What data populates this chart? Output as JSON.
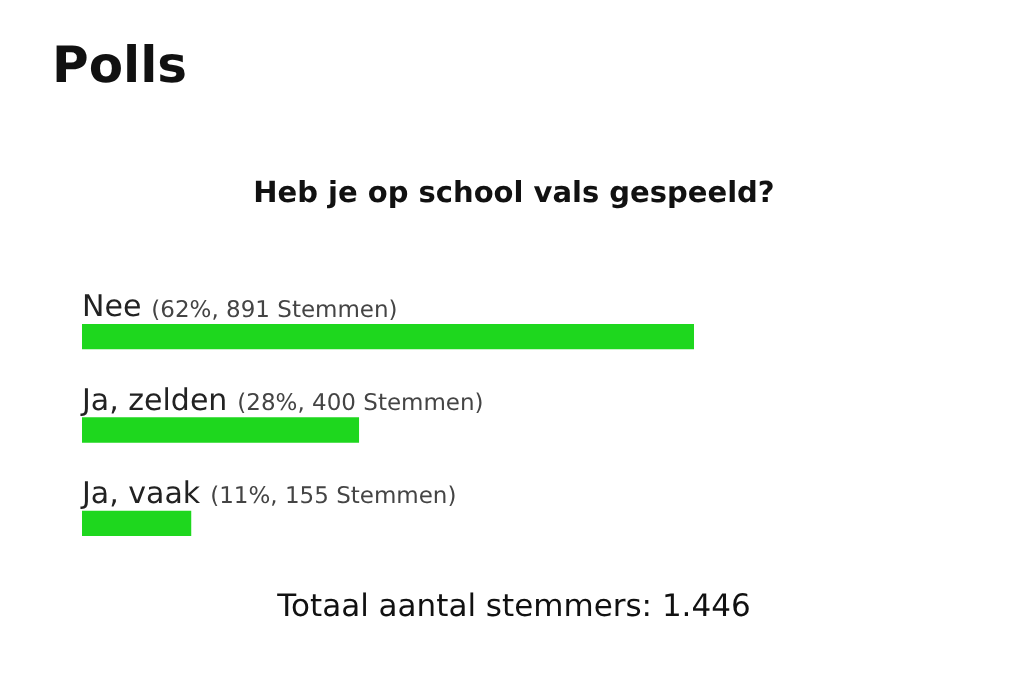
{
  "chart_data": {
    "type": "bar",
    "orientation": "horizontal",
    "title": "Polls",
    "subtitle": "Heb je op school vals gespeeld?",
    "categories": [
      "Nee",
      "Ja, zelden",
      "Ja, vaak"
    ],
    "values": [
      62,
      28,
      11
    ],
    "value_labels": [
      "(62%, 891 Stemmen)",
      "(28%, 400 Stemmen)",
      "(11%, 155 Stemmen)"
    ],
    "color": "#1ed71e",
    "legend": false,
    "annotations": [
      "Totaal aantal stemmers: 1.446"
    ]
  }
}
